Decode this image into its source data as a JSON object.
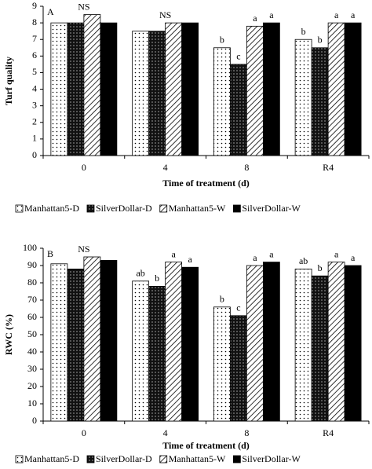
{
  "chart_data": [
    {
      "type": "bar",
      "panel": "A",
      "y_label": "Turf quality",
      "x_label": "Time of treatment (d)",
      "categories": [
        "0",
        "4",
        "8",
        "R4"
      ],
      "ylim": [
        0,
        9
      ],
      "yticks": [
        0,
        1,
        2,
        3,
        4,
        5,
        6,
        7,
        8,
        9
      ],
      "group_labels": [
        "NS",
        "NS",
        null,
        null
      ],
      "series": [
        {
          "name": "Manhattan5-D",
          "color": "#ffffff",
          "pattern": "dots",
          "values": [
            8,
            7.5,
            6.5,
            7
          ],
          "letters": [
            null,
            null,
            "b",
            "b"
          ]
        },
        {
          "name": "SilverDollar-D",
          "color": "#111111",
          "pattern": "dots",
          "values": [
            8,
            7.5,
            5.5,
            6.5
          ],
          "letters": [
            null,
            null,
            "c",
            "b"
          ]
        },
        {
          "name": "Manhattan5-W",
          "color": "#ffffff",
          "pattern": "hatch",
          "values": [
            8.5,
            8,
            7.8,
            8
          ],
          "letters": [
            null,
            null,
            "a",
            "a"
          ]
        },
        {
          "name": "SilverDollar-W",
          "color": "#000000",
          "pattern": "solid",
          "values": [
            8,
            8,
            8,
            8
          ],
          "letters": [
            null,
            null,
            "a",
            "a"
          ]
        }
      ]
    },
    {
      "type": "bar",
      "panel": "B",
      "y_label": "RWC (%)",
      "x_label": "Time of treatment (d)",
      "categories": [
        "0",
        "4",
        "8",
        "R4"
      ],
      "ylim": [
        0,
        100
      ],
      "yticks": [
        0,
        10,
        20,
        30,
        40,
        50,
        60,
        70,
        80,
        90,
        100
      ],
      "group_labels": [
        "NS",
        null,
        null,
        null
      ],
      "series": [
        {
          "name": "Manhattan5-D",
          "color": "#ffffff",
          "pattern": "dots",
          "values": [
            91,
            81,
            66,
            88
          ],
          "letters": [
            null,
            "ab",
            "b",
            "ab"
          ]
        },
        {
          "name": "SilverDollar-D",
          "color": "#111111",
          "pattern": "dots",
          "values": [
            88,
            78,
            61,
            84
          ],
          "letters": [
            null,
            "b",
            "c",
            "b"
          ]
        },
        {
          "name": "Manhattan5-W",
          "color": "#ffffff",
          "pattern": "hatch",
          "values": [
            95,
            92,
            90,
            92
          ],
          "letters": [
            null,
            "a",
            "a",
            "a"
          ]
        },
        {
          "name": "SilverDollar-W",
          "color": "#000000",
          "pattern": "solid",
          "values": [
            93,
            89,
            92,
            90
          ],
          "letters": [
            null,
            "a",
            "a",
            "a"
          ]
        }
      ]
    }
  ]
}
